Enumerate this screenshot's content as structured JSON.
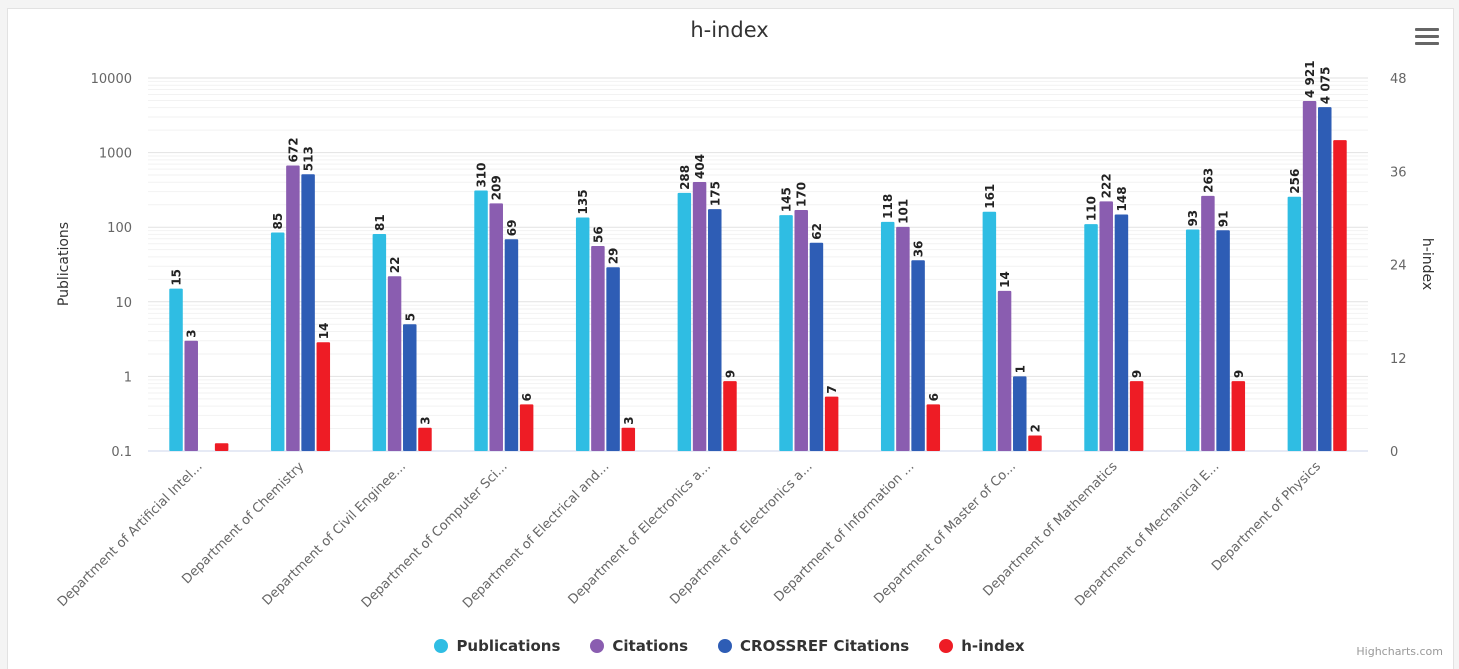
{
  "chart_data": {
    "type": "bar",
    "title": "h-index",
    "categories": [
      "Department of Artificial Intel...",
      "Department of Chemistry",
      "Department of Civil Enginee...",
      "Department of Computer Sci...",
      "Department of Electrical and...",
      "Department of Electronics a...",
      "Department of Electronics a...",
      "Department of Information ...",
      "Department of Master of Co...",
      "Department of Mathematics",
      "Department of Mechanical E...",
      "Department of Physics"
    ],
    "y_left": {
      "label": "Publications",
      "scale": "log",
      "range": [
        0.1,
        10000
      ],
      "ticks": [
        "0.1",
        "1",
        "10",
        "100",
        "1000",
        "10000"
      ]
    },
    "y_right": {
      "label": "h-index",
      "scale": "linear",
      "range": [
        0,
        48
      ],
      "ticks": [
        "0",
        "12",
        "24",
        "36",
        "48"
      ]
    },
    "series": [
      {
        "name": "Publications",
        "color": "#2fbde3",
        "axis": "left",
        "values": [
          15,
          85,
          81,
          310,
          135,
          288,
          145,
          118,
          161,
          110,
          93,
          256
        ],
        "labels": [
          "15",
          "85",
          "81",
          "310",
          "135",
          "288",
          "145",
          "118",
          "161",
          "110",
          "93",
          "256"
        ]
      },
      {
        "name": "Citations",
        "color": "#8a5db0",
        "axis": "left",
        "values": [
          3,
          672,
          22,
          209,
          56,
          404,
          170,
          101,
          14,
          222,
          263,
          4921
        ],
        "labels": [
          "3",
          "672",
          "22",
          "209",
          "56",
          "404",
          "170",
          "101",
          "14",
          "222",
          "263",
          "4 921"
        ]
      },
      {
        "name": "CROSSREF Citations",
        "color": "#2e5db5",
        "axis": "left",
        "values": [
          null,
          513,
          5,
          69,
          29,
          175,
          62,
          36,
          1,
          148,
          91,
          4075
        ],
        "labels": [
          "",
          "513",
          "5",
          "69",
          "29",
          "175",
          "62",
          "36",
          "1",
          "148",
          "91",
          "4 075"
        ]
      },
      {
        "name": "h-index",
        "color": "#ee1c25",
        "axis": "right",
        "values": [
          1,
          14,
          3,
          6,
          3,
          9,
          7,
          6,
          2,
          9,
          9,
          40
        ],
        "labels": [
          "",
          "14",
          "3",
          "6",
          "3",
          "9",
          "7",
          "6",
          "2",
          "9",
          "9",
          ""
        ]
      }
    ],
    "grid": true,
    "legend_position": "bottom-center"
  },
  "credits": "Highcharts.com",
  "menu_icon": "hamburger-menu-icon"
}
